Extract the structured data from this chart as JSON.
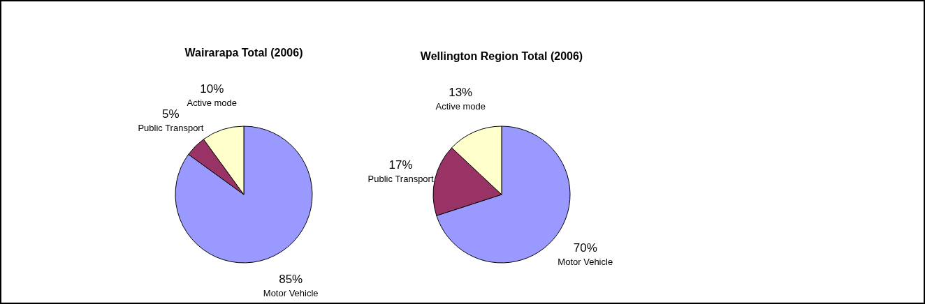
{
  "chart_data": [
    {
      "type": "pie",
      "title": "Wairarapa Total (2006)",
      "categories": [
        "Motor Vehicle",
        "Public Transport",
        "Active mode"
      ],
      "values": [
        85,
        5,
        10
      ],
      "colors": [
        "#9999ff",
        "#993366",
        "#ffffcc"
      ],
      "value_labels": [
        "85%",
        "5%",
        "10%"
      ]
    },
    {
      "type": "pie",
      "title": "Wellington Region Total (2006)",
      "categories": [
        "Motor Vehicle",
        "Public Transport",
        "Active mode"
      ],
      "values": [
        70,
        17,
        13
      ],
      "colors": [
        "#9999ff",
        "#993366",
        "#ffffcc"
      ],
      "value_labels": [
        "70%",
        "17%",
        "13%"
      ]
    }
  ]
}
